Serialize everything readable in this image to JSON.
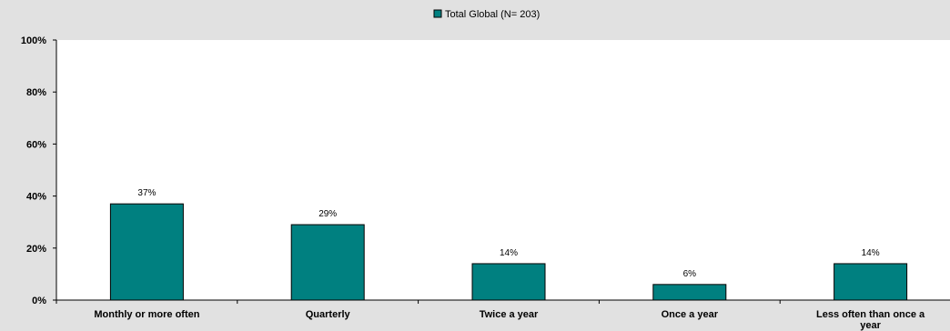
{
  "chart_data": {
    "type": "bar",
    "categories": [
      "Monthly or more often",
      "Quarterly",
      "Twice a year",
      "Once a year",
      [
        "Less often than once a",
        "year"
      ]
    ],
    "series": [
      {
        "name": "Total Global (N= 203)",
        "values": [
          37,
          29,
          14,
          6,
          14
        ],
        "data_labels": [
          "37%",
          "29%",
          "14%",
          "6%",
          "14%"
        ],
        "color": "#008080"
      }
    ],
    "y_ticks": [
      "0%",
      "20%",
      "40%",
      "60%",
      "80%",
      "100%"
    ],
    "ylim": [
      0,
      100
    ],
    "title": "",
    "xlabel": "",
    "ylabel": "",
    "grid": false,
    "legend_position": "top-center",
    "colors": {
      "background": "#e1e1e1",
      "plot_area": "#ffffff",
      "bar": "#008080",
      "axis": "#000000"
    }
  }
}
